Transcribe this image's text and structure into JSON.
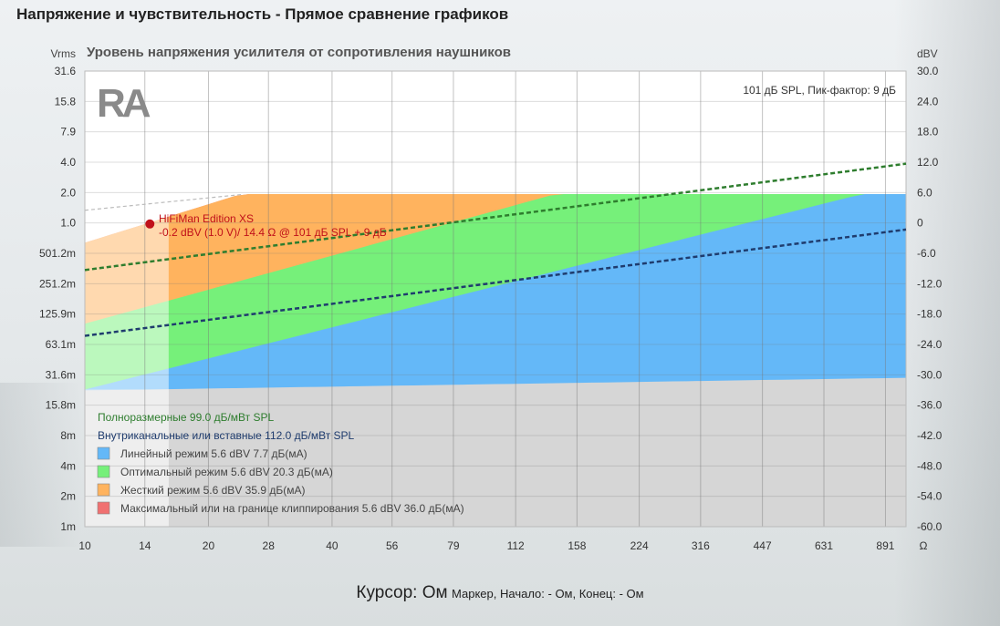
{
  "header": {
    "title": "Напряжение и чувствительность - Прямое сравнение графиков"
  },
  "chart_data": {
    "type": "area",
    "title": "Уровень напряжения усилителя от сопротивления наушников",
    "y_left_unit": "Vrms",
    "y_right_unit": "dBV",
    "x_unit": "Ω",
    "x_scale": "log",
    "x_range": [
      10,
      1000
    ],
    "y_range_dBV": [
      -60,
      30
    ],
    "x_ticks": [
      "10",
      "14",
      "20",
      "28",
      "40",
      "56",
      "79",
      "112",
      "158",
      "224",
      "316",
      "447",
      "631",
      "891"
    ],
    "x_tick_values": [
      10,
      14,
      20,
      28,
      40,
      56,
      79,
      112,
      158,
      224,
      316,
      447,
      631,
      891
    ],
    "y_left_ticks": [
      "31.6",
      "15.8",
      "7.9",
      "4.0",
      "2.0",
      "1.0",
      "501.2m",
      "251.2m",
      "125.9m",
      "63.1m",
      "31.6m",
      "15.8m",
      "8m",
      "4m",
      "2m",
      "1m"
    ],
    "y_right_ticks": [
      "30.0",
      "24.0",
      "18.0",
      "12.0",
      "6.0",
      "0",
      "-6.0",
      "-12.0",
      "-18.0",
      "-24.0",
      "-30.0",
      "-36.0",
      "-42.0",
      "-48.0",
      "-54.0",
      "-60.0"
    ],
    "y_tick_dBV": [
      30,
      24,
      18,
      12,
      6,
      0,
      -6,
      -12,
      -18,
      -24,
      -30,
      -36,
      -42,
      -48,
      -54,
      -60
    ],
    "annotation_top_right": "101 дБ SPL, Пик-фактор: 9 дБ",
    "marker": {
      "x": 14.4,
      "y_dBV": -0.2,
      "label1": "HiFiMan Edition XS",
      "label2": "-0.2 dBV (1.0 V)/ 14.4 Ω @ 101 дБ SPL + 9 дБ"
    },
    "unusable_region_x_max": 16,
    "regions": [
      {
        "name": "Максимальный или на границе клиппирования 5.6 dBV 36.0 дБ(мА)",
        "color": "#f07070",
        "upper": [
          [
            10,
            -4
          ],
          [
            24,
            5.6
          ],
          [
            1000,
            5.6
          ]
        ],
        "lower": [
          [
            10,
            -4
          ],
          [
            24,
            5.6
          ],
          [
            1000,
            5.6
          ]
        ]
      },
      {
        "name": "Жесткий режим 5.6 dBV 35.9 дБ(мА)",
        "color": "#ffb35e",
        "upper": [
          [
            10,
            -4
          ],
          [
            24,
            5.6
          ],
          [
            1000,
            5.6
          ]
        ],
        "lower": [
          [
            10,
            -20
          ],
          [
            140,
            5.6
          ],
          [
            1000,
            5.6
          ]
        ]
      },
      {
        "name": "Оптимальный режим 5.6 dBV 20.3 дБ(мА)",
        "color": "#76f07a",
        "upper": [
          [
            10,
            -20
          ],
          [
            140,
            5.6
          ],
          [
            1000,
            5.6
          ]
        ],
        "lower": [
          [
            10,
            -33
          ],
          [
            780,
            5.6
          ],
          [
            1000,
            5.6
          ]
        ]
      },
      {
        "name": "Линейный режим 5.6 dBV 7.7 дБ(мА)",
        "color": "#64b8f8",
        "upper": [
          [
            10,
            -33
          ],
          [
            780,
            5.6
          ],
          [
            1000,
            5.6
          ]
        ],
        "lower": [
          [
            10,
            -33
          ],
          [
            1000,
            -30.5
          ]
        ]
      }
    ],
    "limit_line": {
      "points": [
        [
          10,
          2.5
        ],
        [
          24,
          5.6
        ],
        [
          1000,
          5.6
        ]
      ],
      "color": "#bbbbbb"
    },
    "series": [
      {
        "name": "Полноразмерные 99.0 дБ/мВт SPL",
        "color": "#2e7d2e",
        "points": [
          [
            10,
            -9.3
          ],
          [
            1000,
            11.7
          ]
        ]
      },
      {
        "name": "Внутриканальные или вставные 112.0 дБ/мВт SPL",
        "color": "#1f3c6e",
        "points": [
          [
            10,
            -22.3
          ],
          [
            1000,
            -1.3
          ]
        ]
      }
    ],
    "legend_position": "bottom-left"
  },
  "cursor": {
    "label": "Курсор: Ом",
    "details": "Маркер, Начало: - Ом, Конец: - Ом"
  }
}
